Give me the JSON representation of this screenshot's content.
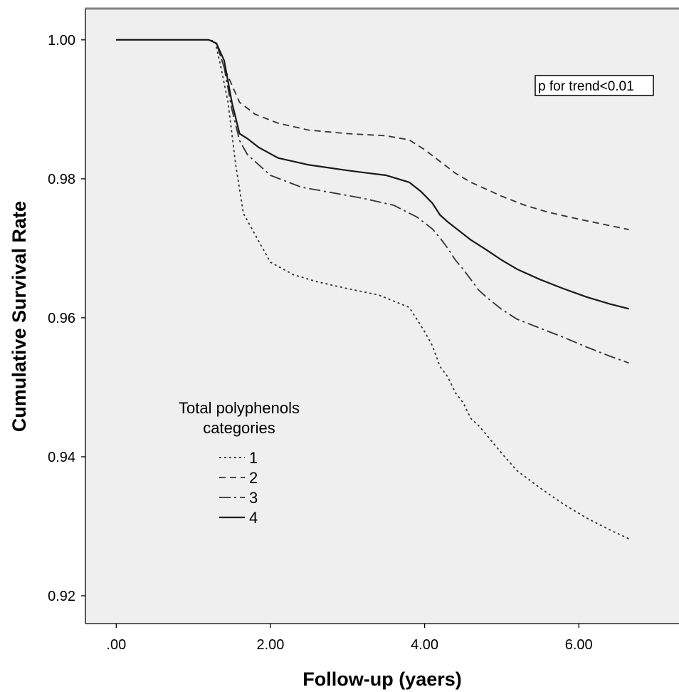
{
  "chart_data": {
    "type": "line",
    "title": "",
    "xlabel": "Follow-up (yaers)",
    "ylabel": "Cumulative Survival Rate",
    "xlim": [
      -0.4,
      7.3
    ],
    "ylim": [
      0.916,
      1.0045
    ],
    "x_ticks": [
      0,
      2,
      4,
      6
    ],
    "x_tick_labels": [
      ".00",
      "2.00",
      "4.00",
      "6.00"
    ],
    "y_ticks": [
      1.0,
      0.98,
      0.96,
      0.94,
      0.92
    ],
    "y_tick_labels": [
      "1.00",
      "0.98",
      "0.96",
      "0.94",
      "0.92"
    ],
    "grid": false,
    "legend": {
      "title_line1": "Total polyphenols",
      "title_line2": "categories",
      "placement": "left-middle"
    },
    "annotation": "p for trend<0.01",
    "series": [
      {
        "name": "1",
        "dash": "3,4",
        "color": "#333333",
        "x": [
          0,
          1.2,
          1.28,
          1.35,
          1.45,
          1.55,
          1.65,
          1.75,
          2.0,
          2.3,
          2.6,
          3.0,
          3.4,
          3.8,
          3.9,
          4.0,
          4.1,
          4.2,
          4.3,
          4.4,
          4.5,
          4.6,
          4.7,
          4.8,
          5.0,
          5.2,
          5.5,
          5.8,
          6.1,
          6.4,
          6.65
        ],
        "y": [
          1.0,
          1.0,
          0.9998,
          0.9965,
          0.991,
          0.982,
          0.975,
          0.973,
          0.968,
          0.9662,
          0.9652,
          0.9642,
          0.9633,
          0.9615,
          0.9598,
          0.958,
          0.956,
          0.953,
          0.9515,
          0.9492,
          0.9478,
          0.9455,
          0.9445,
          0.9432,
          0.9405,
          0.938,
          0.9355,
          0.9332,
          0.9312,
          0.9295,
          0.9282
        ]
      },
      {
        "name": "2",
        "dash": "9,6",
        "color": "#333333",
        "x": [
          0,
          1.2,
          1.3,
          1.4,
          1.6,
          1.8,
          2.1,
          2.5,
          3.0,
          3.5,
          3.8,
          4.0,
          4.2,
          4.4,
          4.6,
          4.8,
          5.0,
          5.3,
          5.6,
          6.0,
          6.3,
          6.65
        ],
        "y": [
          1.0,
          1.0,
          0.9995,
          0.996,
          0.991,
          0.9893,
          0.988,
          0.987,
          0.9865,
          0.9862,
          0.9856,
          0.9842,
          0.9825,
          0.9808,
          0.9795,
          0.9785,
          0.9775,
          0.9762,
          0.9752,
          0.9742,
          0.9735,
          0.9727
        ]
      },
      {
        "name": "3",
        "dash": "16,5,3,5",
        "color": "#333333",
        "x": [
          0,
          1.2,
          1.3,
          1.4,
          1.5,
          1.6,
          1.7,
          2.0,
          2.4,
          2.8,
          3.2,
          3.6,
          3.9,
          4.1,
          4.2,
          4.3,
          4.4,
          4.5,
          4.6,
          4.7,
          4.8,
          5.0,
          5.2,
          5.5,
          5.8,
          6.1,
          6.4,
          6.65
        ],
        "y": [
          1.0,
          1.0,
          0.9995,
          0.996,
          0.99,
          0.9855,
          0.9835,
          0.9805,
          0.9788,
          0.978,
          0.9772,
          0.9762,
          0.9745,
          0.9728,
          0.9715,
          0.97,
          0.9683,
          0.967,
          0.9655,
          0.964,
          0.963,
          0.9612,
          0.9598,
          0.9585,
          0.9572,
          0.9558,
          0.9545,
          0.9535
        ]
      },
      {
        "name": "4",
        "dash": "",
        "color": "#1a1a1a",
        "x": [
          0,
          1.2,
          1.3,
          1.4,
          1.5,
          1.6,
          1.7,
          1.85,
          2.1,
          2.5,
          3.0,
          3.5,
          3.8,
          3.95,
          4.1,
          4.2,
          4.3,
          4.45,
          4.6,
          4.8,
          5.0,
          5.2,
          5.5,
          5.8,
          6.1,
          6.4,
          6.65
        ],
        "y": [
          1.0,
          1.0,
          0.9995,
          0.997,
          0.991,
          0.9865,
          0.9858,
          0.9845,
          0.983,
          0.982,
          0.9812,
          0.9805,
          0.9795,
          0.9782,
          0.9765,
          0.9748,
          0.9738,
          0.9725,
          0.9712,
          0.9698,
          0.9683,
          0.967,
          0.9655,
          0.9642,
          0.963,
          0.962,
          0.9613
        ]
      }
    ]
  }
}
